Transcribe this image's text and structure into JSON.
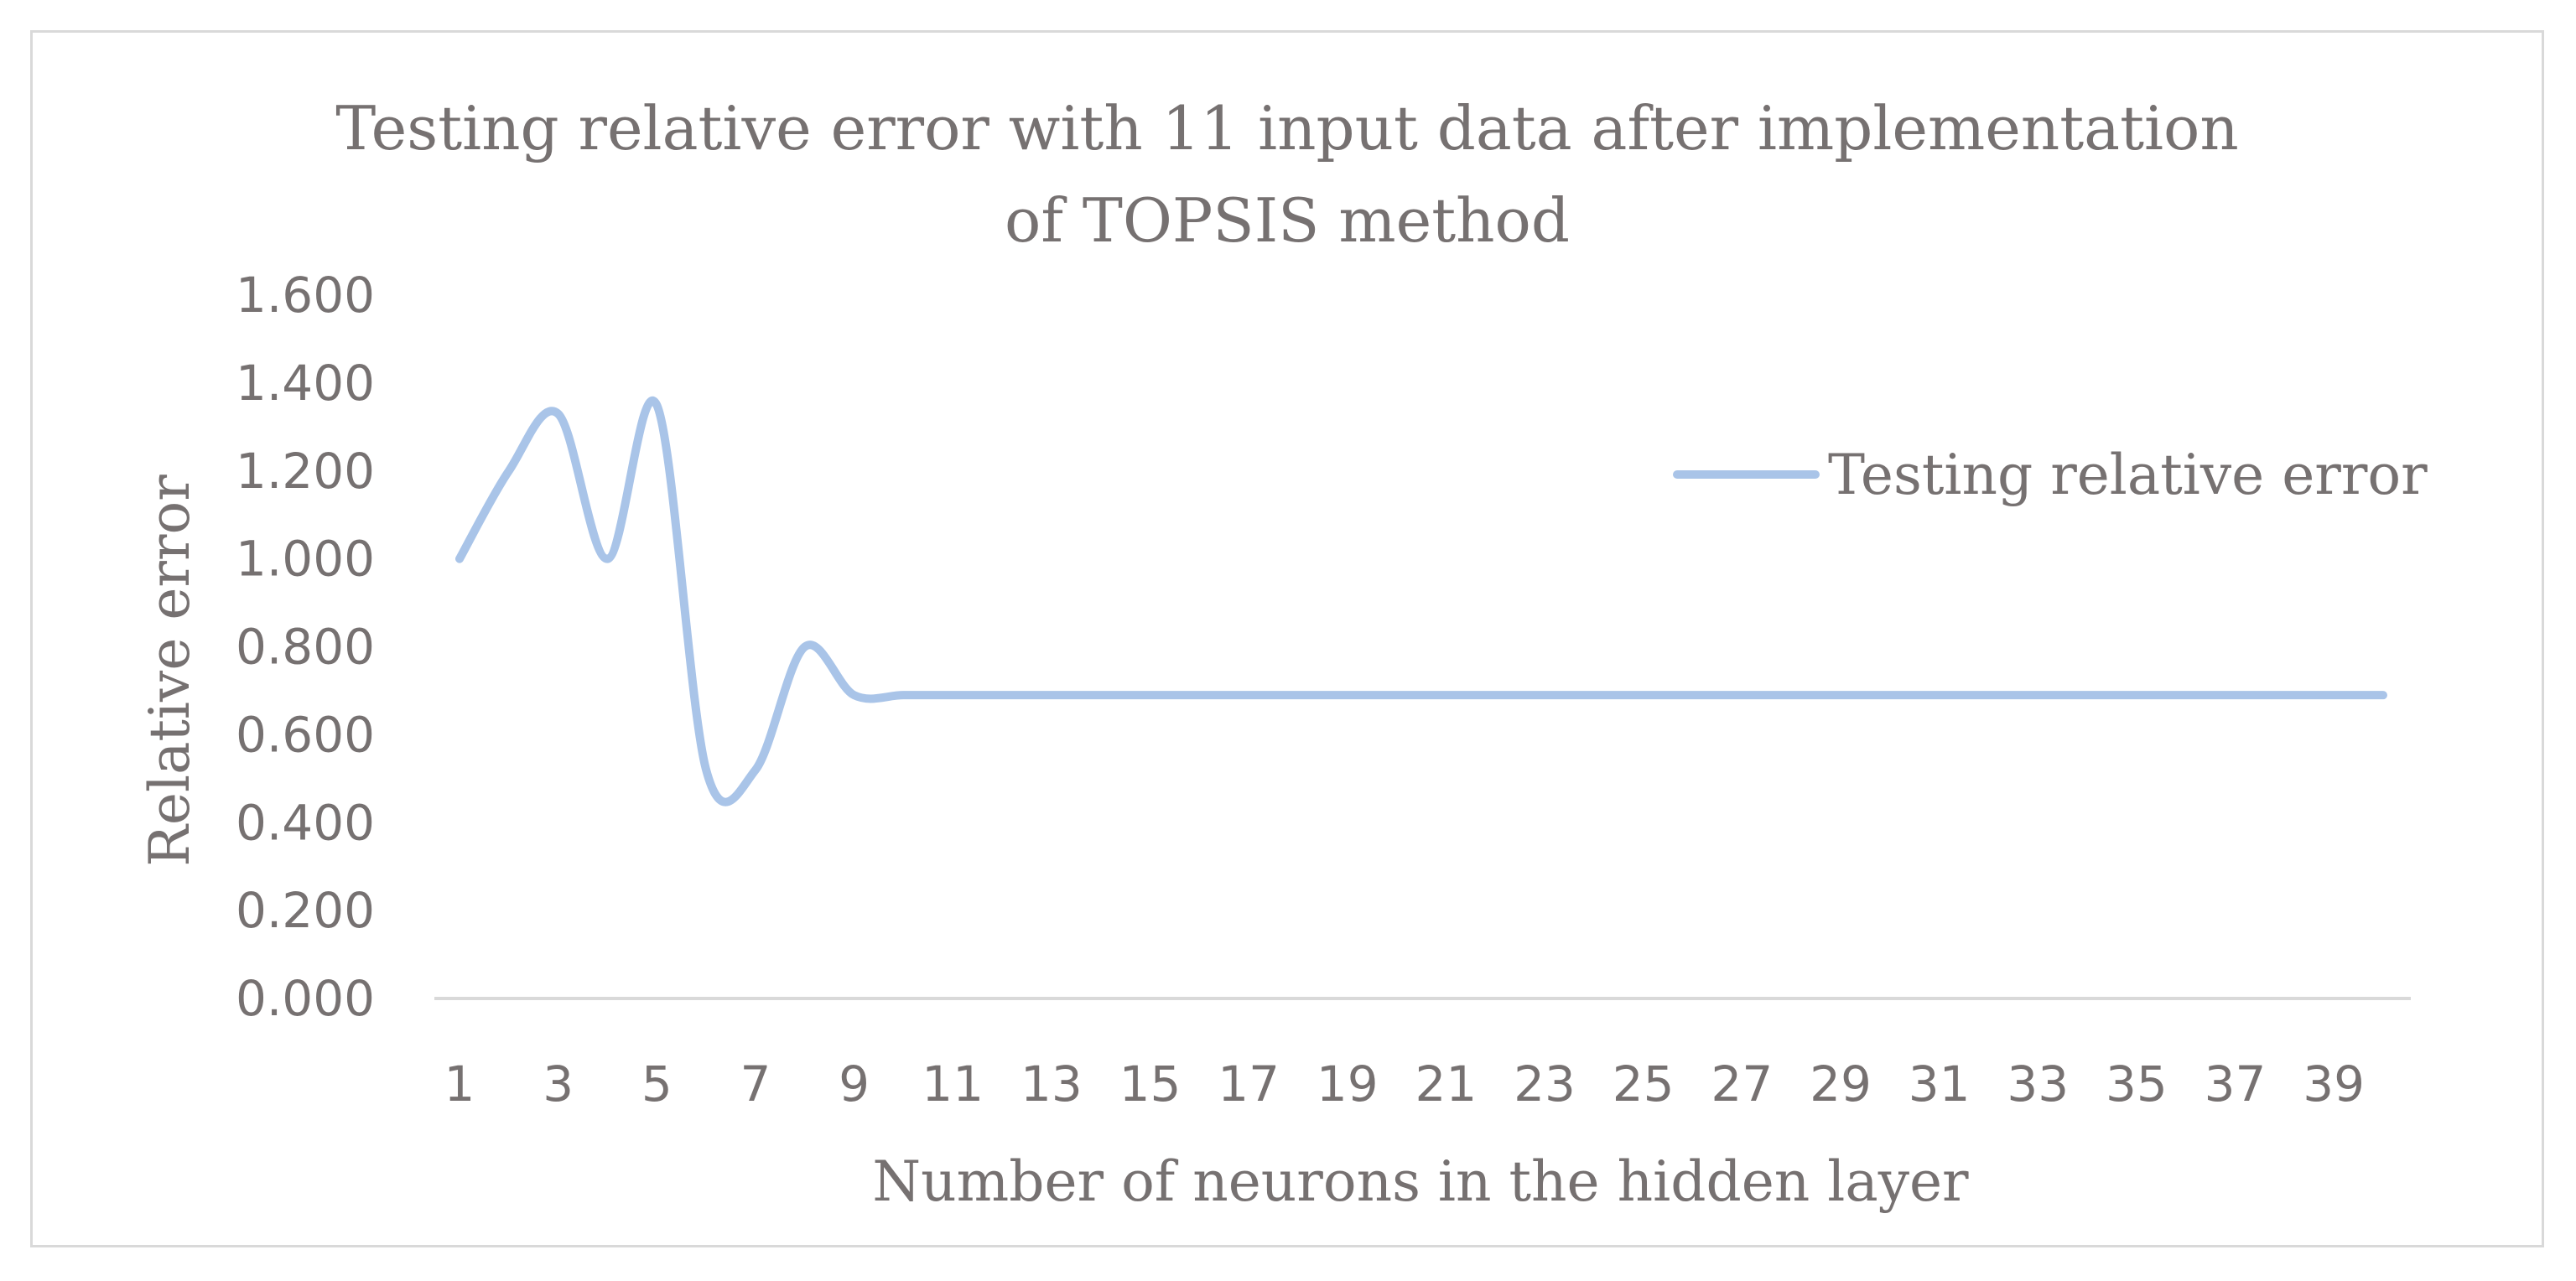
{
  "chart_data": {
    "type": "line",
    "title_line1": "Testing relative error with 11 input data after implementation",
    "title_line2": "of TOPSIS method",
    "xlabel": "Number of neurons in the hidden layer",
    "ylabel": "Relative error",
    "ylim": [
      0,
      1.6
    ],
    "yticks": [
      "0.000",
      "0.200",
      "0.400",
      "0.600",
      "0.800",
      "1.000",
      "1.200",
      "1.400",
      "1.600"
    ],
    "xticks": [
      "1",
      "3",
      "5",
      "7",
      "9",
      "11",
      "13",
      "15",
      "17",
      "19",
      "21",
      "23",
      "25",
      "27",
      "29",
      "31",
      "33",
      "35",
      "37",
      "39"
    ],
    "x": [
      1,
      2,
      3,
      4,
      5,
      6,
      7,
      8,
      9,
      10,
      11,
      12,
      13,
      14,
      15,
      16,
      17,
      18,
      19,
      20,
      21,
      22,
      23,
      24,
      25,
      26,
      27,
      28,
      29,
      30,
      31,
      32,
      33,
      34,
      35,
      36,
      37,
      38,
      39,
      40
    ],
    "series": [
      {
        "name": "Testing relative error",
        "color": "#a9c4e8",
        "values": [
          1.0,
          1.2,
          1.33,
          1.0,
          1.35,
          0.52,
          0.52,
          0.8,
          0.69,
          0.69,
          0.69,
          0.69,
          0.69,
          0.69,
          0.69,
          0.69,
          0.69,
          0.69,
          0.69,
          0.69,
          0.69,
          0.69,
          0.69,
          0.69,
          0.69,
          0.69,
          0.69,
          0.69,
          0.69,
          0.69,
          0.69,
          0.69,
          0.69,
          0.69,
          0.69,
          0.69,
          0.69,
          0.69,
          0.69,
          0.69
        ]
      }
    ],
    "legend_position": "right",
    "grid": false
  }
}
